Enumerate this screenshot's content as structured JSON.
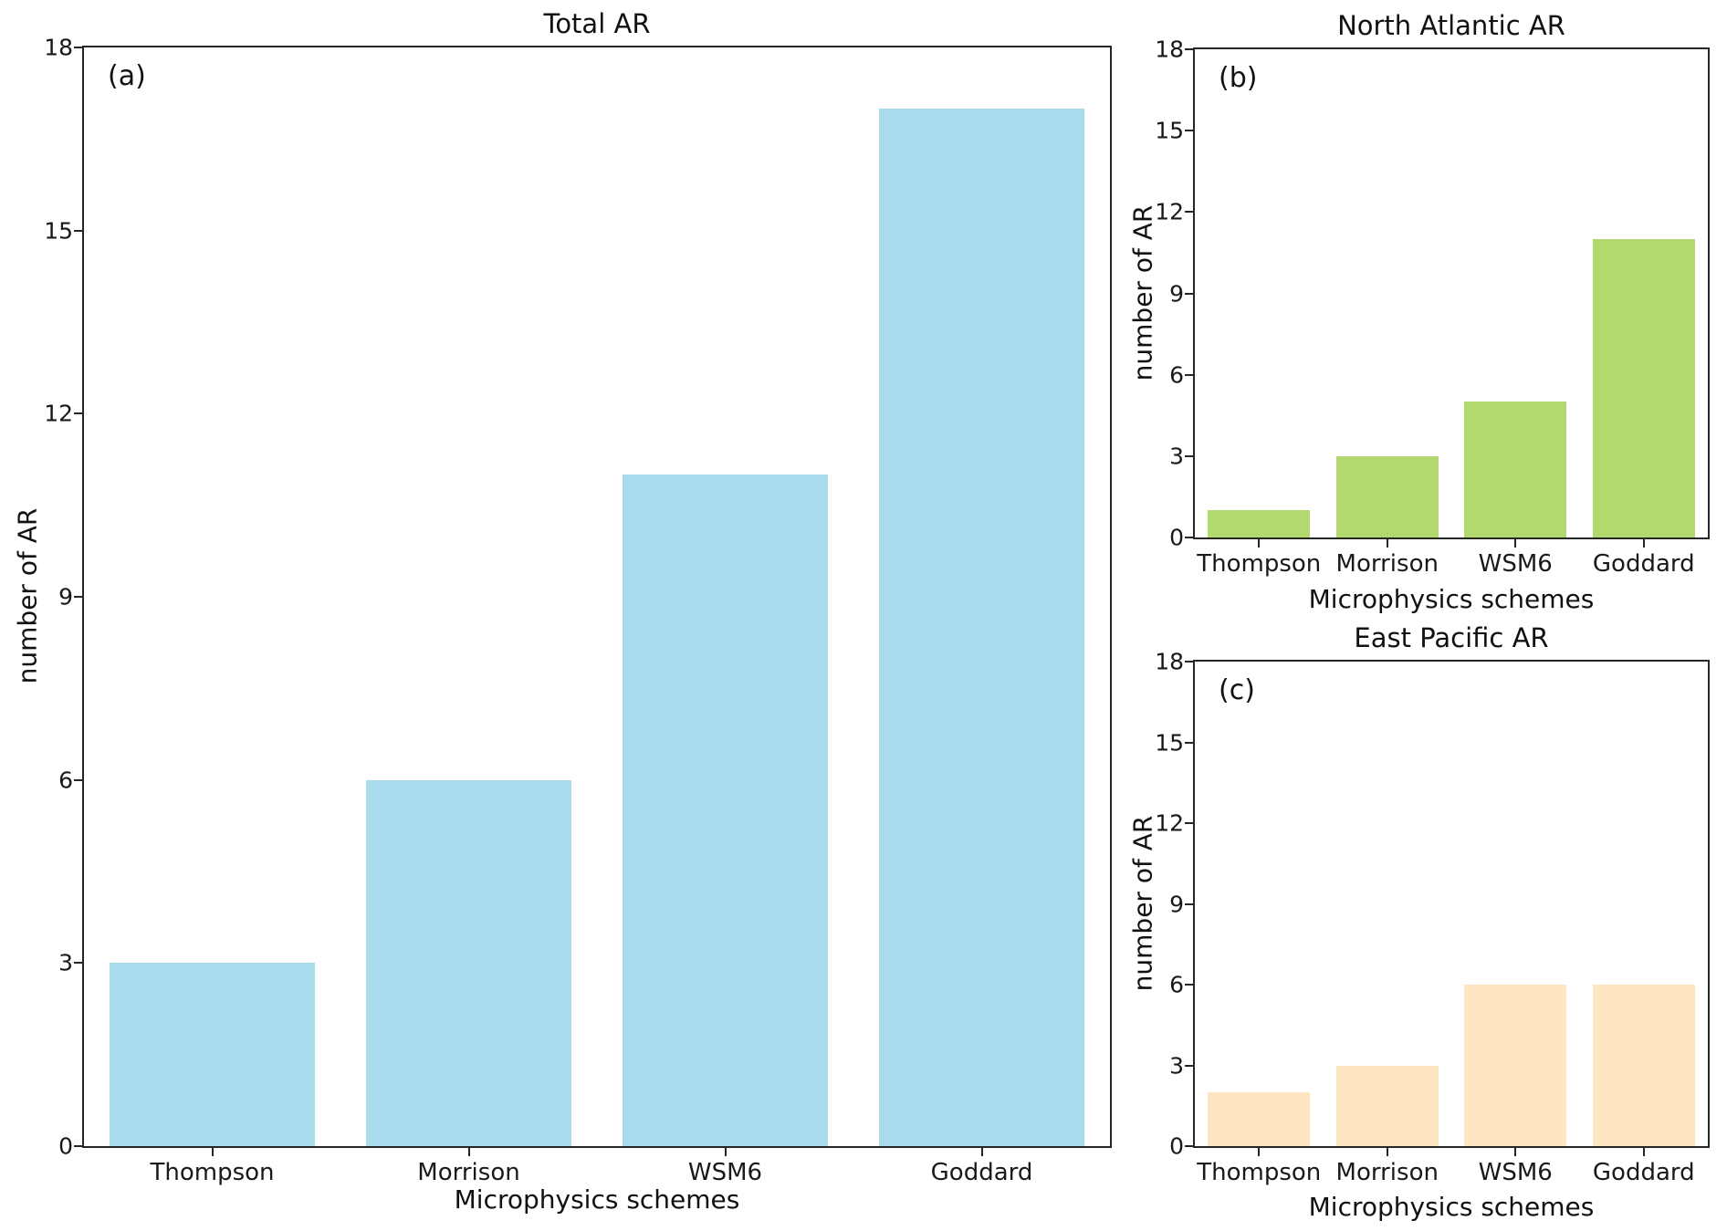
{
  "figure": {
    "background": "#ffffff",
    "spine_color": "#262626",
    "text_color": "#191919"
  },
  "chart_data": [
    {
      "type": "bar",
      "panel_label": "(a)",
      "title": "Total AR",
      "xlabel": "Microphysics schemes",
      "ylabel": "number of AR",
      "categories": [
        "Thompson",
        "Morrison",
        "WSM6",
        "Goddard"
      ],
      "values": [
        3,
        6,
        11,
        17
      ],
      "bar_color": "#A9DBEC",
      "bar_width_fraction": 0.8,
      "ylim": [
        0,
        18
      ],
      "yticks": [
        0,
        3,
        6,
        9,
        12,
        15,
        18
      ],
      "grid": false,
      "legend": "none"
    },
    {
      "type": "bar",
      "panel_label": "(b)",
      "title": "North Atlantic AR",
      "xlabel": "Microphysics schemes",
      "ylabel": "number of AR",
      "categories": [
        "Thompson",
        "Morrison",
        "WSM6",
        "Goddard"
      ],
      "values": [
        1,
        3,
        5,
        11
      ],
      "bar_color": "#B2D96E",
      "bar_width_fraction": 0.8,
      "ylim": [
        0,
        18
      ],
      "yticks": [
        0,
        3,
        6,
        9,
        12,
        15,
        18
      ],
      "grid": false,
      "legend": "none"
    },
    {
      "type": "bar",
      "panel_label": "(c)",
      "title": "East Pacific AR",
      "xlabel": "Microphysics schemes",
      "ylabel": "number of AR",
      "categories": [
        "Thompson",
        "Morrison",
        "WSM6",
        "Goddard"
      ],
      "values": [
        2,
        3,
        6,
        6
      ],
      "bar_color": "#FEE6C2",
      "bar_width_fraction": 0.8,
      "ylim": [
        0,
        18
      ],
      "yticks": [
        0,
        3,
        6,
        9,
        12,
        15,
        18
      ],
      "grid": false,
      "legend": "none"
    }
  ]
}
